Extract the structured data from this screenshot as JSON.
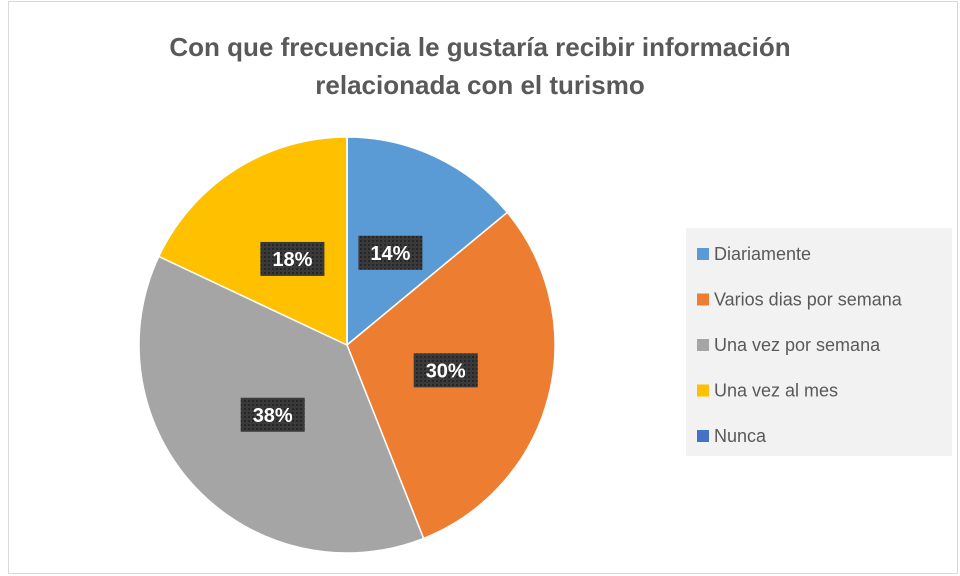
{
  "chart_data": {
    "type": "pie",
    "title": "Con que frecuencia le gustaría recibir información relacionada con el turismo",
    "categories": [
      "Diariamente",
      "Varios dias por semana",
      "Una vez por semana",
      "Una vez al mes",
      "Nunca"
    ],
    "values": [
      14,
      30,
      38,
      18,
      0
    ],
    "value_labels": [
      "14%",
      "30%",
      "38%",
      "18%",
      null
    ],
    "colors": [
      "#5b9bd5",
      "#ed7d31",
      "#a5a5a5",
      "#ffc000",
      "#4472c4"
    ],
    "legend": "right"
  }
}
